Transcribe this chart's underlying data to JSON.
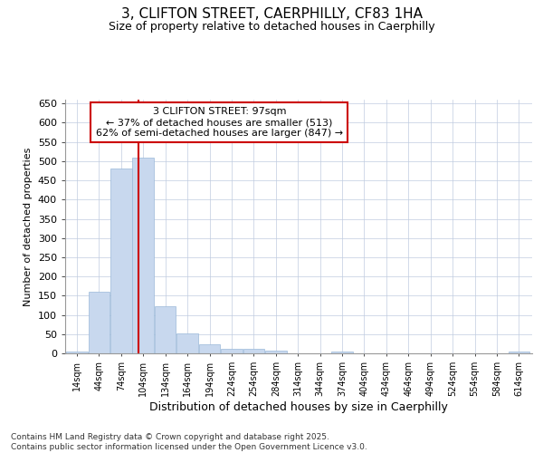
{
  "title": "3, CLIFTON STREET, CAERPHILLY, CF83 1HA",
  "subtitle": "Size of property relative to detached houses in Caerphilly",
  "xlabel": "Distribution of detached houses by size in Caerphilly",
  "ylabel": "Number of detached properties",
  "footer_line1": "Contains HM Land Registry data © Crown copyright and database right 2025.",
  "footer_line2": "Contains public sector information licensed under the Open Government Licence v3.0.",
  "property_size": 97,
  "property_label": "3 CLIFTON STREET: 97sqm",
  "pct_smaller": 37,
  "n_smaller": 513,
  "pct_larger_semi": 62,
  "n_larger_semi": 847,
  "bar_color": "#c8d8ee",
  "bar_edge_color": "#9ab8d8",
  "grid_color": "#c0cce0",
  "annotation_box_color": "#cc0000",
  "vline_color": "#cc0000",
  "bins": [
    14,
    44,
    74,
    104,
    134,
    164,
    194,
    224,
    254,
    284,
    314,
    344,
    374,
    404,
    434,
    464,
    494,
    524,
    554,
    584,
    614
  ],
  "bar_heights": [
    5,
    160,
    482,
    510,
    122,
    52,
    24,
    12,
    12,
    8,
    0,
    0,
    5,
    0,
    0,
    0,
    0,
    0,
    0,
    0,
    5
  ],
  "ylim": [
    0,
    660
  ],
  "yticks": [
    0,
    50,
    100,
    150,
    200,
    250,
    300,
    350,
    400,
    450,
    500,
    550,
    600,
    650
  ],
  "background_color": "#ffffff",
  "plot_bg_color": "#ffffff"
}
